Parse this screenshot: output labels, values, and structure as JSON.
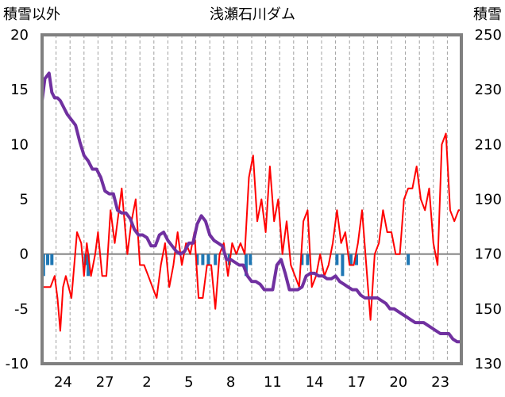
{
  "chart_data": {
    "type": "line",
    "title": "浅瀬石川ダム",
    "y_left_label": "積雪以外",
    "y_right_label": "積雪",
    "y_left_range": [
      -10,
      20
    ],
    "y_left_ticks": [
      "20",
      "15",
      "10",
      "5",
      "0",
      "-5",
      "-10"
    ],
    "y_right_range": [
      130,
      250
    ],
    "y_right_ticks": [
      "250",
      "230",
      "210",
      "190",
      "170",
      "150",
      "130"
    ],
    "x_range": [
      0,
      30
    ],
    "x_tick_labels": [
      "24",
      "27",
      "2",
      "5",
      "8",
      "11",
      "14",
      "17",
      "20",
      "23"
    ],
    "x_tick_positions": [
      1.5,
      4.5,
      7.5,
      10.5,
      13.5,
      16.5,
      19.5,
      22.5,
      25.5,
      28.5
    ],
    "grid": "vertical dashed per day",
    "colors": {
      "temperature": "#ff0000",
      "snow": "#7030a0",
      "precip": "#1f77b4",
      "frame": "#808080",
      "zero": "#808080"
    },
    "series": [
      {
        "axis": "left",
        "color": "#ff0000",
        "x": [
          0.0,
          0.3,
          0.6,
          0.9,
          1.1,
          1.3,
          1.5,
          1.7,
          1.9,
          2.1,
          2.3,
          2.5,
          2.8,
          3.0,
          3.2,
          3.5,
          3.8,
          4.0,
          4.3,
          4.6,
          4.9,
          5.2,
          5.5,
          5.7,
          5.9,
          6.1,
          6.4,
          6.7,
          7.0,
          7.3,
          7.6,
          7.9,
          8.2,
          8.5,
          8.8,
          9.1,
          9.4,
          9.7,
          10.0,
          10.3,
          10.6,
          10.9,
          11.2,
          11.5,
          11.8,
          12.1,
          12.4,
          12.7,
          13.0,
          13.3,
          13.6,
          13.9,
          14.2,
          14.5,
          14.8,
          15.1,
          15.4,
          15.7,
          16.0,
          16.3,
          16.6,
          16.9,
          17.2,
          17.5,
          17.8,
          18.1,
          18.4,
          18.7,
          19.0,
          19.3,
          19.6,
          19.9,
          20.2,
          20.5,
          20.8,
          21.1,
          21.4,
          21.7,
          22.0,
          22.3,
          22.6,
          22.9,
          23.2,
          23.5,
          23.8,
          24.1,
          24.4,
          24.7,
          25.0,
          25.3,
          25.6,
          25.9,
          26.2,
          26.5,
          26.8,
          27.1,
          27.4,
          27.7,
          28.0,
          28.3,
          28.6,
          28.9,
          29.2,
          29.5,
          29.8,
          30.0
        ],
        "y": [
          -3,
          -3,
          -3,
          -2,
          -4,
          -7,
          -3,
          -2,
          -3,
          -4,
          -1,
          2,
          1,
          -2,
          1,
          -2,
          0,
          2,
          -2,
          -2,
          4,
          1,
          4,
          6,
          3,
          0,
          3,
          5,
          -1,
          -1,
          -2,
          -3,
          -4,
          -1,
          1,
          -3,
          -1,
          2,
          -1,
          1,
          0,
          2,
          -4,
          -4,
          -1,
          -1,
          -5,
          0,
          1,
          -2,
          1,
          0,
          1,
          0,
          7,
          9,
          3,
          5,
          2,
          8,
          3,
          5,
          0,
          3,
          -1,
          -2,
          -3,
          3,
          4,
          -3,
          -2,
          0,
          -2,
          -1,
          1,
          4,
          1,
          2,
          -1,
          -1,
          1,
          4,
          -1,
          -6,
          0,
          1,
          4,
          2,
          2,
          0,
          0,
          5,
          6,
          6,
          8,
          5,
          4,
          6,
          1,
          -1,
          10,
          11,
          4,
          3,
          4,
          4
        ]
      },
      {
        "axis": "right",
        "color": "#7030a0",
        "x": [
          0.0,
          0.2,
          0.5,
          0.7,
          0.9,
          1.1,
          1.3,
          1.5,
          1.8,
          2.1,
          2.4,
          2.7,
          3.0,
          3.3,
          3.6,
          3.9,
          4.2,
          4.5,
          4.8,
          5.1,
          5.4,
          5.7,
          6.0,
          6.3,
          6.6,
          6.9,
          7.2,
          7.5,
          7.8,
          8.1,
          8.4,
          8.7,
          9.0,
          9.3,
          9.6,
          9.9,
          10.2,
          10.5,
          10.8,
          11.1,
          11.4,
          11.7,
          12.0,
          12.3,
          12.6,
          12.9,
          13.2,
          13.5,
          13.8,
          14.1,
          14.4,
          14.7,
          15.0,
          15.3,
          15.6,
          15.9,
          16.2,
          16.5,
          16.8,
          17.1,
          17.4,
          17.7,
          18.0,
          18.3,
          18.6,
          18.9,
          19.2,
          19.5,
          19.8,
          20.1,
          20.4,
          20.7,
          21.0,
          21.3,
          21.6,
          21.9,
          22.2,
          22.5,
          22.8,
          23.1,
          23.4,
          23.7,
          24.0,
          24.3,
          24.6,
          24.9,
          25.2,
          25.5,
          25.8,
          26.1,
          26.4,
          26.7,
          27.0,
          27.3,
          27.6,
          27.9,
          28.2,
          28.5,
          28.8,
          29.1,
          29.4,
          29.7,
          30.0
        ],
        "y": [
          226,
          234,
          236,
          229,
          227,
          227,
          226,
          224,
          221,
          219,
          217,
          211,
          206,
          204,
          201,
          201,
          198,
          193,
          192,
          192,
          186,
          185,
          185,
          183,
          179,
          177,
          177,
          176,
          173,
          173,
          177,
          178,
          175,
          173,
          171,
          170,
          171,
          174,
          174,
          181,
          184,
          182,
          177,
          175,
          174,
          173,
          168,
          168,
          167,
          166,
          166,
          162,
          160,
          160,
          159,
          157,
          157,
          157,
          166,
          168,
          163,
          157,
          157,
          157,
          158,
          162,
          163,
          163,
          162,
          162,
          161,
          161,
          162,
          160,
          159,
          158,
          157,
          157,
          155,
          154,
          154,
          154,
          154,
          153,
          152,
          150,
          150,
          149,
          148,
          147,
          146,
          145,
          145,
          145,
          144,
          143,
          142,
          141,
          141,
          141,
          139,
          138,
          138
        ]
      },
      {
        "axis": "left",
        "type": "bar",
        "color": "#1f77b4",
        "x": [
          0.1,
          0.4,
          0.7,
          3.1,
          3.3,
          11.1,
          11.5,
          11.9,
          12.4,
          13.4,
          14.6,
          14.9,
          18.6,
          19.0,
          21.1,
          21.5,
          22.1,
          22.5,
          26.2
        ],
        "y": [
          -2,
          -1,
          -1,
          -1,
          -2,
          -1,
          -1,
          -1,
          -1,
          -1,
          -2,
          -1,
          -1,
          -1,
          -1,
          -2,
          -1,
          -1,
          -1
        ]
      }
    ]
  }
}
